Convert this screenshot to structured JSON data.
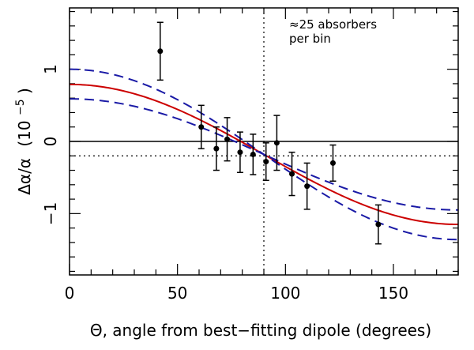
{
  "chart_data": {
    "type": "scatter",
    "title": "",
    "xlabel": "Θ, angle from best−fitting dipole (degrees)",
    "ylabel_main": "Δα/α",
    "ylabel_unit_base": "(10",
    "ylabel_unit_exp": "−5",
    "ylabel_unit_close": ")",
    "xlim": [
      0,
      180
    ],
    "ylim": [
      -1.85,
      1.85
    ],
    "x_ticks": [
      {
        "value": 0,
        "label": "0"
      },
      {
        "value": 50,
        "label": "50"
      },
      {
        "value": 100,
        "label": "100"
      },
      {
        "value": 150,
        "label": "150"
      }
    ],
    "y_ticks": [
      {
        "value": -1,
        "label": "−1"
      },
      {
        "value": 0,
        "label": "0"
      },
      {
        "value": 1,
        "label": "1"
      }
    ],
    "x_minor_step": 10,
    "y_minor_step": 0.2,
    "annotation_lines": [
      "≈25 absorbers",
      "per bin"
    ],
    "reference_lines": {
      "solid_y": 0,
      "dotted_y": -0.2,
      "dotted_x": 90
    },
    "series": [
      {
        "kind": "points_with_error",
        "color": "#000000",
        "points": [
          {
            "x": 42,
            "y": 1.25,
            "yerr": 0.4
          },
          {
            "x": 61,
            "y": 0.2,
            "yerr": 0.3
          },
          {
            "x": 68,
            "y": -0.1,
            "yerr": 0.3
          },
          {
            "x": 73,
            "y": 0.03,
            "yerr": 0.3
          },
          {
            "x": 79,
            "y": -0.15,
            "yerr": 0.28
          },
          {
            "x": 85,
            "y": -0.18,
            "yerr": 0.28
          },
          {
            "x": 91,
            "y": -0.28,
            "yerr": 0.26
          },
          {
            "x": 96,
            "y": -0.02,
            "yerr": 0.38
          },
          {
            "x": 103,
            "y": -0.45,
            "yerr": 0.3
          },
          {
            "x": 110,
            "y": -0.62,
            "yerr": 0.32
          },
          {
            "x": 122,
            "y": -0.3,
            "yerr": 0.25
          },
          {
            "x": 143,
            "y": -1.15,
            "yerr": 0.27
          }
        ]
      },
      {
        "kind": "fit_curve",
        "color": "#cc0000",
        "style": "solid",
        "amplitude": 0.97,
        "offset": -0.18
      },
      {
        "kind": "fit_curve",
        "color": "#1a1aa6",
        "style": "dashed",
        "amplitude": 1.18,
        "offset": -0.18
      },
      {
        "kind": "fit_curve",
        "color": "#1a1aa6",
        "style": "dashed",
        "amplitude": 0.77,
        "offset": -0.18
      }
    ]
  }
}
